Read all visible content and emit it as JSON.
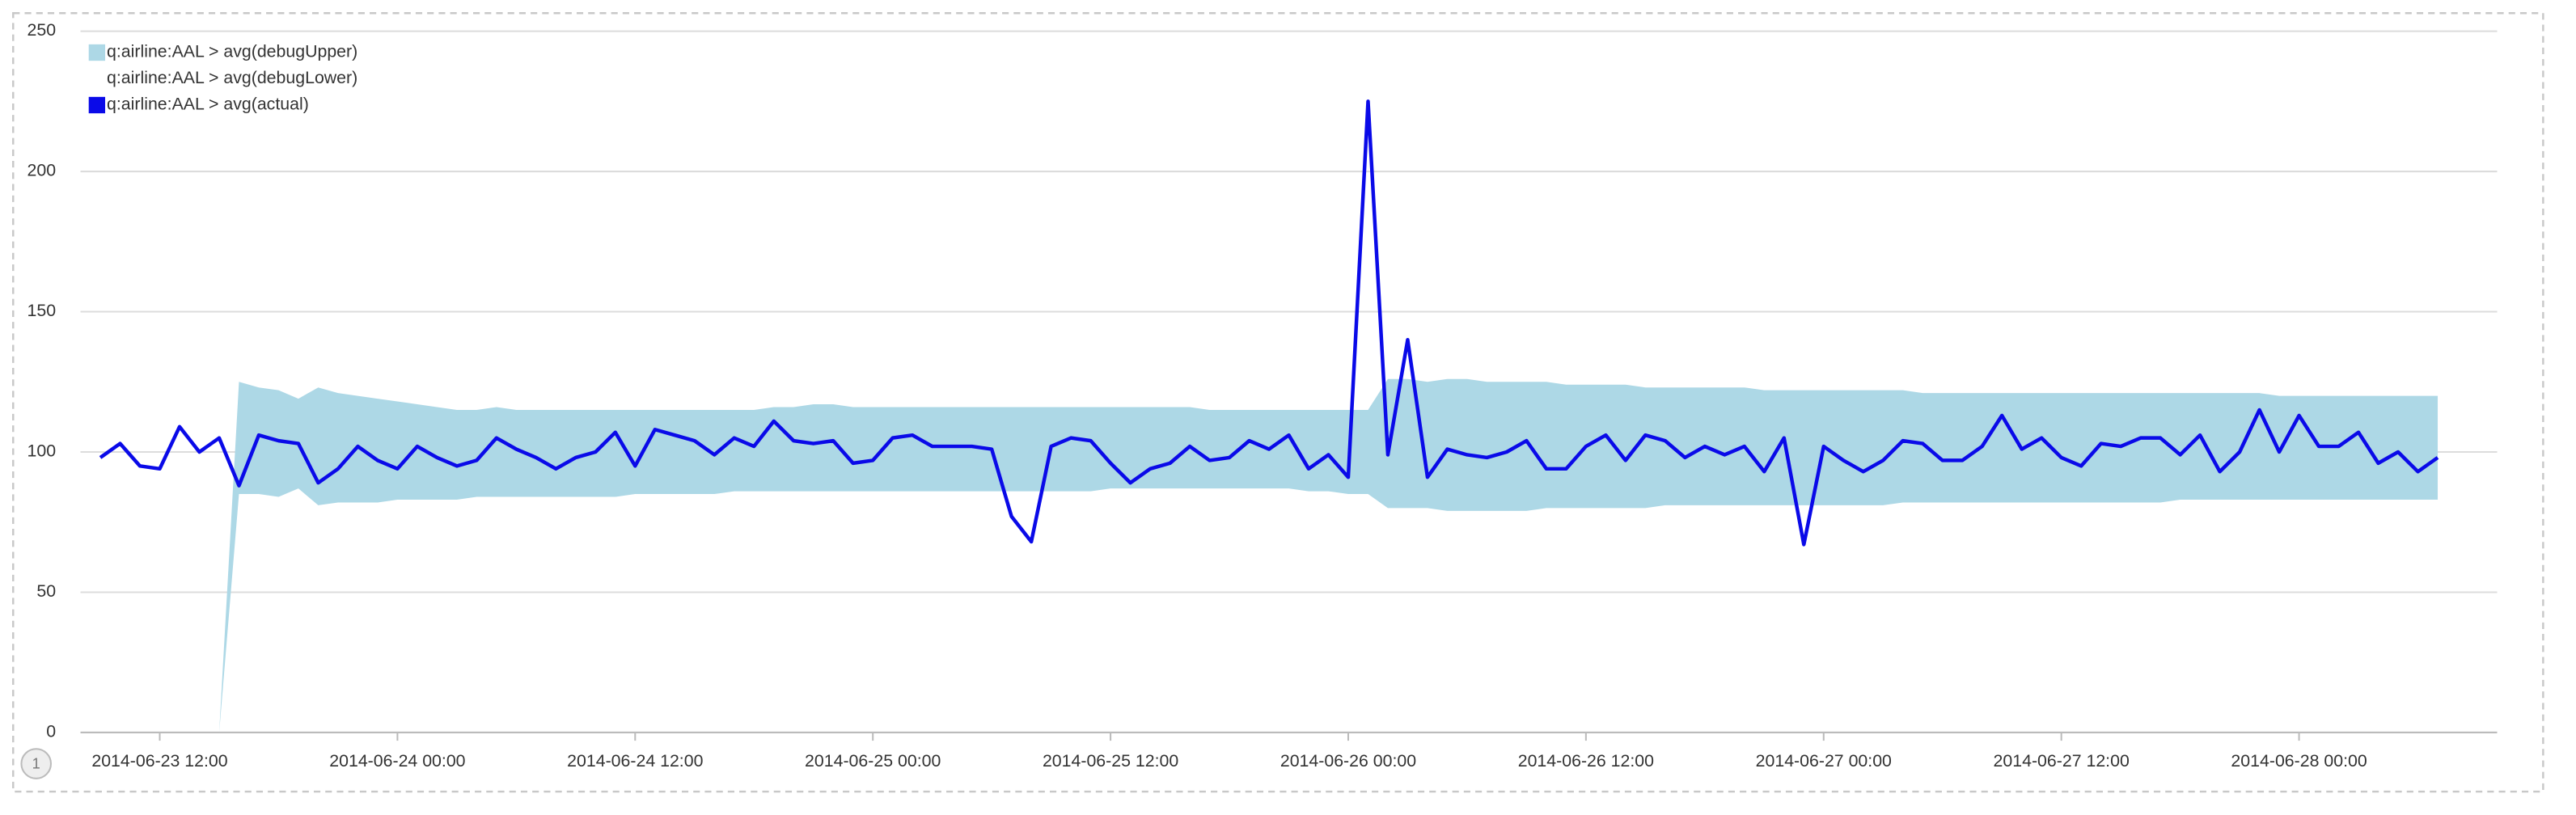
{
  "pagination": "1",
  "chart_data": {
    "type": "line",
    "x": [
      "2014-06-23 09:00",
      "2014-06-23 10:00",
      "2014-06-23 11:00",
      "2014-06-23 12:00",
      "2014-06-23 13:00",
      "2014-06-23 14:00",
      "2014-06-23 15:00",
      "2014-06-23 16:00",
      "2014-06-23 17:00",
      "2014-06-23 18:00",
      "2014-06-23 19:00",
      "2014-06-23 20:00",
      "2014-06-23 21:00",
      "2014-06-23 22:00",
      "2014-06-23 23:00",
      "2014-06-24 00:00",
      "2014-06-24 01:00",
      "2014-06-24 02:00",
      "2014-06-24 03:00",
      "2014-06-24 04:00",
      "2014-06-24 05:00",
      "2014-06-24 06:00",
      "2014-06-24 07:00",
      "2014-06-24 08:00",
      "2014-06-24 09:00",
      "2014-06-24 10:00",
      "2014-06-24 11:00",
      "2014-06-24 12:00",
      "2014-06-24 13:00",
      "2014-06-24 14:00",
      "2014-06-24 15:00",
      "2014-06-24 16:00",
      "2014-06-24 17:00",
      "2014-06-24 18:00",
      "2014-06-24 19:00",
      "2014-06-24 20:00",
      "2014-06-24 21:00",
      "2014-06-24 22:00",
      "2014-06-24 23:00",
      "2014-06-25 00:00",
      "2014-06-25 01:00",
      "2014-06-25 02:00",
      "2014-06-25 03:00",
      "2014-06-25 04:00",
      "2014-06-25 05:00",
      "2014-06-25 06:00",
      "2014-06-25 07:00",
      "2014-06-25 08:00",
      "2014-06-25 09:00",
      "2014-06-25 10:00",
      "2014-06-25 11:00",
      "2014-06-25 12:00",
      "2014-06-25 13:00",
      "2014-06-25 14:00",
      "2014-06-25 15:00",
      "2014-06-25 16:00",
      "2014-06-25 17:00",
      "2014-06-25 18:00",
      "2014-06-25 19:00",
      "2014-06-25 20:00",
      "2014-06-25 21:00",
      "2014-06-25 22:00",
      "2014-06-25 23:00",
      "2014-06-26 00:00",
      "2014-06-26 01:00",
      "2014-06-26 02:00",
      "2014-06-26 03:00",
      "2014-06-26 04:00",
      "2014-06-26 05:00",
      "2014-06-26 06:00",
      "2014-06-26 07:00",
      "2014-06-26 08:00",
      "2014-06-26 09:00",
      "2014-06-26 10:00",
      "2014-06-26 11:00",
      "2014-06-26 12:00",
      "2014-06-26 13:00",
      "2014-06-26 14:00",
      "2014-06-26 15:00",
      "2014-06-26 16:00",
      "2014-06-26 17:00",
      "2014-06-26 18:00",
      "2014-06-26 19:00",
      "2014-06-26 20:00",
      "2014-06-26 21:00",
      "2014-06-26 22:00",
      "2014-06-26 23:00",
      "2014-06-27 00:00",
      "2014-06-27 01:00",
      "2014-06-27 02:00",
      "2014-06-27 03:00",
      "2014-06-27 04:00",
      "2014-06-27 05:00",
      "2014-06-27 06:00",
      "2014-06-27 07:00",
      "2014-06-27 08:00",
      "2014-06-27 09:00",
      "2014-06-27 10:00",
      "2014-06-27 11:00",
      "2014-06-27 12:00",
      "2014-06-27 13:00",
      "2014-06-27 14:00",
      "2014-06-27 15:00",
      "2014-06-27 16:00",
      "2014-06-27 17:00",
      "2014-06-27 18:00",
      "2014-06-27 19:00",
      "2014-06-27 20:00",
      "2014-06-27 21:00",
      "2014-06-27 22:00",
      "2014-06-27 23:00",
      "2014-06-28 00:00",
      "2014-06-28 01:00",
      "2014-06-28 02:00",
      "2014-06-28 03:00",
      "2014-06-28 04:00",
      "2014-06-28 05:00",
      "2014-06-28 06:00",
      "2014-06-28 07:00"
    ],
    "series": [
      {
        "name": "q:airline:AAL > avg(debugUpper)",
        "color": "#add8e6",
        "values": [
          null,
          null,
          null,
          null,
          null,
          null,
          0,
          125,
          123,
          122,
          119,
          123,
          121,
          120,
          119,
          118,
          117,
          116,
          115,
          115,
          116,
          115,
          115,
          115,
          115,
          115,
          115,
          115,
          115,
          115,
          115,
          115,
          115,
          115,
          116,
          116,
          117,
          117,
          116,
          116,
          116,
          116,
          116,
          116,
          116,
          116,
          116,
          116,
          116,
          116,
          116,
          116,
          116,
          116,
          116,
          116,
          115,
          115,
          115,
          115,
          115,
          115,
          115,
          115,
          115,
          126,
          126,
          125,
          126,
          126,
          125,
          125,
          125,
          125,
          124,
          124,
          124,
          124,
          123,
          123,
          123,
          123,
          123,
          123,
          122,
          122,
          122,
          122,
          122,
          122,
          122,
          122,
          121,
          121,
          121,
          121,
          121,
          121,
          121,
          121,
          121,
          121,
          121,
          121,
          121,
          121,
          121,
          121,
          121,
          121,
          120,
          120,
          120,
          120,
          120,
          120,
          120,
          120,
          120
        ]
      },
      {
        "name": "q:airline:AAL > avg(debugLower)",
        "color": "#ffffff",
        "values": [
          null,
          null,
          null,
          null,
          null,
          null,
          0,
          85,
          85,
          84,
          87,
          81,
          82,
          82,
          82,
          83,
          83,
          83,
          83,
          84,
          84,
          84,
          84,
          84,
          84,
          84,
          84,
          85,
          85,
          85,
          85,
          85,
          86,
          86,
          86,
          86,
          86,
          86,
          86,
          86,
          86,
          86,
          86,
          86,
          86,
          86,
          86,
          86,
          86,
          86,
          86,
          87,
          87,
          87,
          87,
          87,
          87,
          87,
          87,
          87,
          87,
          86,
          86,
          85,
          85,
          80,
          80,
          80,
          79,
          79,
          79,
          79,
          79,
          80,
          80,
          80,
          80,
          80,
          80,
          81,
          81,
          81,
          81,
          81,
          81,
          81,
          81,
          81,
          81,
          81,
          81,
          82,
          82,
          82,
          82,
          82,
          82,
          82,
          82,
          82,
          82,
          82,
          82,
          82,
          82,
          83,
          83,
          83,
          83,
          83,
          83,
          83,
          83,
          83,
          83,
          83,
          83,
          83,
          83
        ]
      },
      {
        "name": "q:airline:AAL > avg(actual)",
        "color": "#0a0ae8",
        "values": [
          98,
          103,
          95,
          94,
          109,
          100,
          105,
          88,
          106,
          104,
          103,
          89,
          94,
          102,
          97,
          94,
          102,
          98,
          95,
          97,
          105,
          101,
          98,
          94,
          98,
          100,
          107,
          95,
          108,
          106,
          104,
          99,
          105,
          102,
          111,
          104,
          103,
          104,
          96,
          97,
          105,
          106,
          102,
          102,
          102,
          101,
          77,
          68,
          102,
          105,
          104,
          96,
          89,
          94,
          96,
          102,
          97,
          98,
          104,
          101,
          106,
          94,
          99,
          91,
          225,
          99,
          140,
          91,
          101,
          99,
          98,
          100,
          104,
          94,
          94,
          102,
          106,
          97,
          106,
          104,
          98,
          102,
          99,
          102,
          93,
          105,
          67,
          102,
          97,
          93,
          97,
          104,
          103,
          97,
          97,
          102,
          113,
          101,
          105,
          98,
          95,
          103,
          102,
          105,
          105,
          99,
          106,
          93,
          100,
          115,
          100,
          113,
          102,
          102,
          107,
          96,
          100,
          93,
          98
        ]
      }
    ],
    "xlim": [
      "2014-06-23 08:00",
      "2014-06-28 10:00"
    ],
    "xticks": [
      "2014-06-23 12:00",
      "2014-06-24 00:00",
      "2014-06-24 12:00",
      "2014-06-25 00:00",
      "2014-06-25 12:00",
      "2014-06-26 00:00",
      "2014-06-26 12:00",
      "2014-06-27 00:00",
      "2014-06-27 12:00",
      "2014-06-28 00:00"
    ],
    "ylim": [
      0,
      250
    ],
    "yticks": [
      0,
      50,
      100,
      150,
      200,
      250
    ],
    "grid": true,
    "legend": "top-left"
  }
}
